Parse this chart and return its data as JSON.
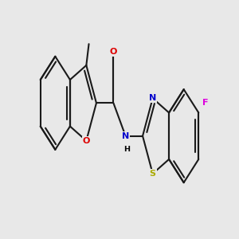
{
  "background_color": "#e8e8e8",
  "bond_color": "#1a1a1a",
  "bond_width": 1.5,
  "atom_colors": {
    "O": "#dd0000",
    "N": "#0000cc",
    "S": "#aaaa00",
    "F": "#dd00dd",
    "C": "#000000"
  },
  "fontsize": 8.0,
  "figsize": [
    3.0,
    3.0
  ],
  "dpi": 100
}
